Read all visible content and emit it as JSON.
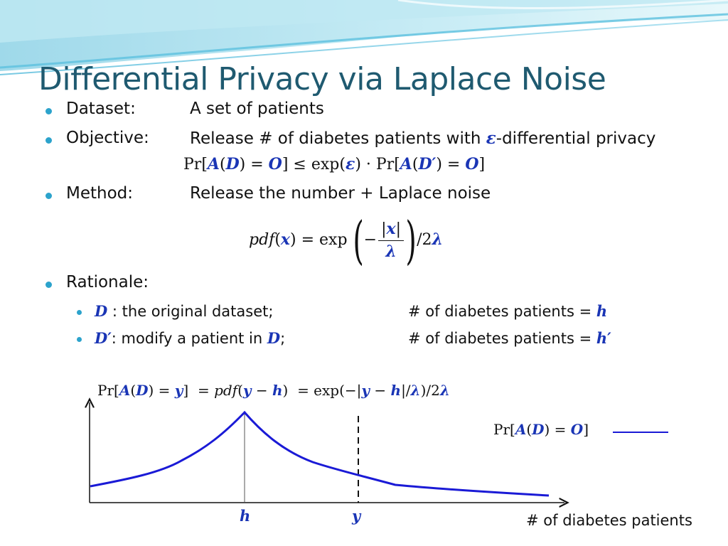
{
  "slide": {
    "title": "Differential Privacy via Laplace Noise",
    "colors": {
      "title": "#1f5a70",
      "bullet": "#2ca3cc",
      "math_var": "#1a35b5",
      "curve": "#1a1ad6"
    }
  },
  "bullets": {
    "dataset_label": "Dataset:",
    "dataset_text": "A set of patients",
    "objective_label": "Objective:",
    "objective_text_pre": "Release # of diabetes patients with ",
    "objective_epsilon": "ε",
    "objective_text_post": "-differential privacy",
    "method_label": "Method:",
    "method_text": "Release the number + Laplace noise",
    "rationale_label": "Rationale:"
  },
  "formulas": {
    "dp_def": {
      "pr1": "Pr[",
      "A": "A",
      "D": "D",
      "O": "O",
      "le": "≤ exp(",
      "eps": "ε",
      "dot": ") · Pr[",
      "Dp": "D′"
    },
    "pdf": {
      "lhs": "pdf",
      "x": "x",
      "exp": "= exp",
      "lambda": "λ",
      "two": "/2"
    }
  },
  "sub_bullets": {
    "d_var": "D",
    "d_text": " : the original dataset;",
    "d_count": "# of diabetes patients = ",
    "d_h": "h",
    "dp_var": "D′",
    "dp_text_pre": ": modify a patient in ",
    "dp_text_D": "D",
    "dp_text_post": ";",
    "dp_count": "# of diabetes patients = ",
    "dp_h": "h′"
  },
  "chart_data": {
    "type": "line",
    "title": "",
    "xlabel": "# of diabetes patients",
    "ylabel": "",
    "legend_label": "Pr[A(D) = O]",
    "legend_position": "right",
    "markers": [
      {
        "label": "h",
        "x": 0,
        "style": "solid"
      },
      {
        "label": "y",
        "x": 1,
        "style": "dashed"
      }
    ],
    "curve": "laplace-shaped peak at h",
    "grid": false
  }
}
